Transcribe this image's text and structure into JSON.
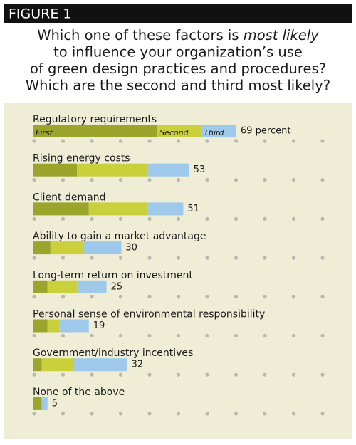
{
  "header": "FIGURE 1",
  "chart_data": {
    "type": "stacked-bar",
    "title": [
      [
        "Which one of these factors is ",
        "most likely"
      ],
      [
        "to influence your organization’s use"
      ],
      [
        "of green design practices and procedures?"
      ],
      [
        "Which are the second and third most likely?"
      ]
    ],
    "categories": [
      "Regulatory requirements",
      "Rising energy costs",
      "Client demand",
      "Ability to gain a market advantage",
      "Long-term return on investment",
      "Personal sense of environmental responsibility",
      "Government/industry incentives",
      "None of the above"
    ],
    "series": [
      {
        "name": "First",
        "color": "#9ba42b",
        "values": [
          42,
          15,
          19,
          6,
          5,
          5,
          3,
          3
        ]
      },
      {
        "name": "Second",
        "color": "#c9d03b",
        "values": [
          15,
          24,
          20,
          11,
          10,
          4,
          11,
          0
        ]
      },
      {
        "name": "Third",
        "color": "#9fc9ea",
        "values": [
          12,
          14,
          12,
          13,
          10,
          10,
          18,
          2
        ]
      }
    ],
    "totals": {
      "values": [
        69,
        53,
        51,
        30,
        25,
        19,
        32,
        5
      ],
      "value_labels": [
        "69 percent",
        "53",
        "51",
        "30",
        "25",
        "19",
        "32",
        "5"
      ]
    },
    "xlim": [
      0,
      110
    ]
  }
}
